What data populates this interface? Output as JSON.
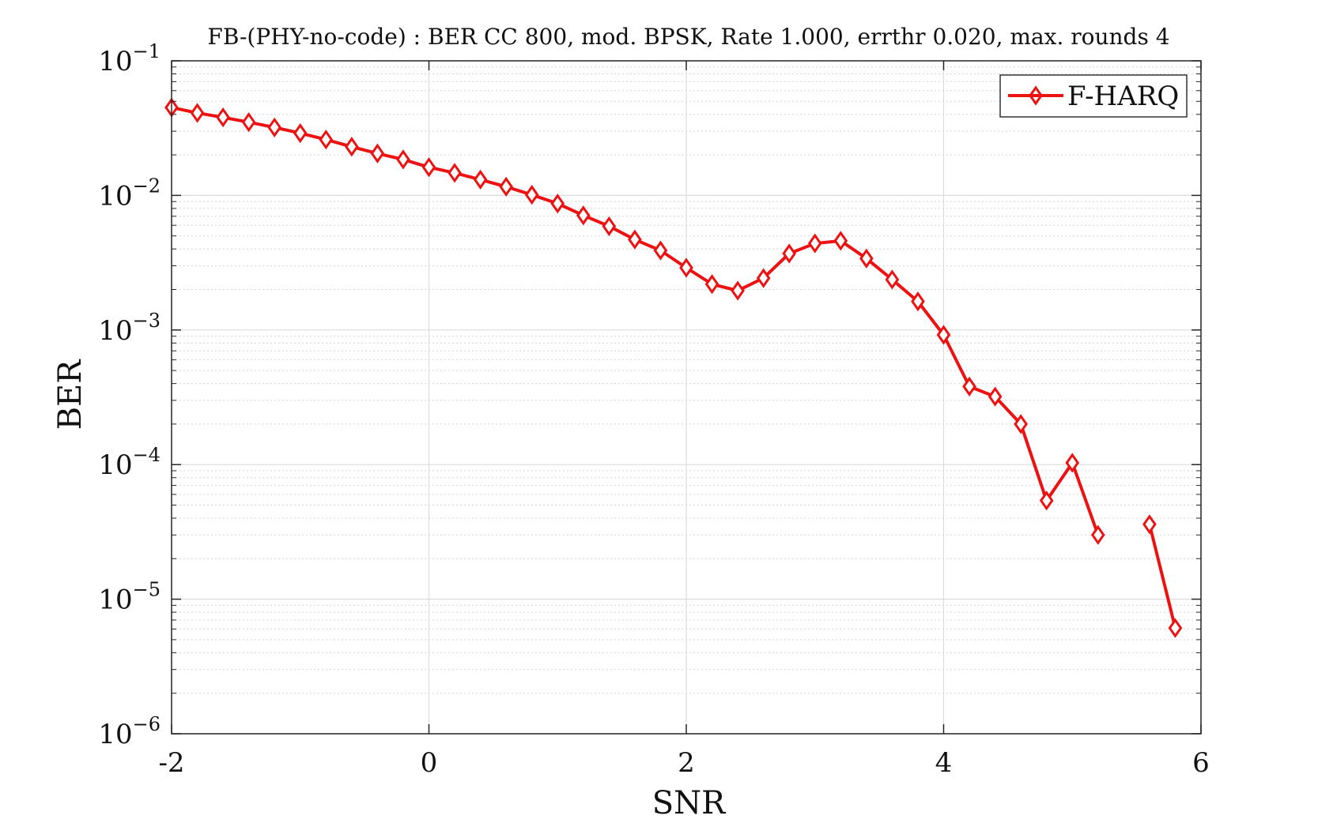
{
  "chart_data": {
    "type": "line",
    "title": "FB-(PHY-no-code) : BER CC 800, mod. BPSK, Rate 1.000, errthr 0.020, max. rounds 4",
    "xlabel": "SNR",
    "ylabel": "BER",
    "xlim": [
      -2,
      6
    ],
    "ylim": [
      1e-06,
      0.1
    ],
    "yscale": "log",
    "grid": true,
    "legend_position": "top-right",
    "x_ticks": [
      "-2",
      "0",
      "2",
      "4",
      "6"
    ],
    "y_ticks": [
      {
        "value": 0.1,
        "base": "10",
        "exp": "−1"
      },
      {
        "value": 0.01,
        "base": "10",
        "exp": "−2"
      },
      {
        "value": 0.001,
        "base": "10",
        "exp": "−3"
      },
      {
        "value": 0.0001,
        "base": "10",
        "exp": "−4"
      },
      {
        "value": 1e-05,
        "base": "10",
        "exp": "−5"
      },
      {
        "value": 1e-06,
        "base": "10",
        "exp": "−6"
      }
    ],
    "series": [
      {
        "name": "F-HARQ",
        "color": "#ee1111",
        "marker": "diamond",
        "points": [
          [
            -2.0,
            0.045
          ],
          [
            -1.8,
            0.041
          ],
          [
            -1.6,
            0.038
          ],
          [
            -1.4,
            0.035
          ],
          [
            -1.2,
            0.032
          ],
          [
            -1.0,
            0.029
          ],
          [
            -0.8,
            0.026
          ],
          [
            -0.6,
            0.023
          ],
          [
            -0.4,
            0.0205
          ],
          [
            -0.2,
            0.0185
          ],
          [
            0.0,
            0.0162
          ],
          [
            0.2,
            0.0147
          ],
          [
            0.4,
            0.0131
          ],
          [
            0.6,
            0.0116
          ],
          [
            0.8,
            0.0101
          ],
          [
            1.0,
            0.0087
          ],
          [
            1.2,
            0.0071
          ],
          [
            1.4,
            0.0059
          ],
          [
            1.6,
            0.0047
          ],
          [
            1.8,
            0.0039
          ],
          [
            2.0,
            0.0029
          ],
          [
            2.2,
            0.00219
          ],
          [
            2.4,
            0.00196
          ],
          [
            2.6,
            0.00243
          ],
          [
            2.8,
            0.0037
          ],
          [
            3.0,
            0.0044
          ],
          [
            3.2,
            0.0046
          ],
          [
            3.4,
            0.0034
          ],
          [
            3.6,
            0.00237
          ],
          [
            3.8,
            0.00163
          ],
          [
            4.0,
            0.00092
          ],
          [
            4.2,
            0.00038
          ],
          [
            4.4,
            0.00032
          ],
          [
            4.6,
            0.0002
          ],
          [
            4.8,
            5.4e-05
          ],
          [
            5.0,
            0.000103
          ],
          [
            5.2,
            3e-05
          ],
          null,
          [
            5.6,
            3.6e-05
          ],
          [
            5.8,
            6.1e-06
          ]
        ]
      }
    ]
  }
}
